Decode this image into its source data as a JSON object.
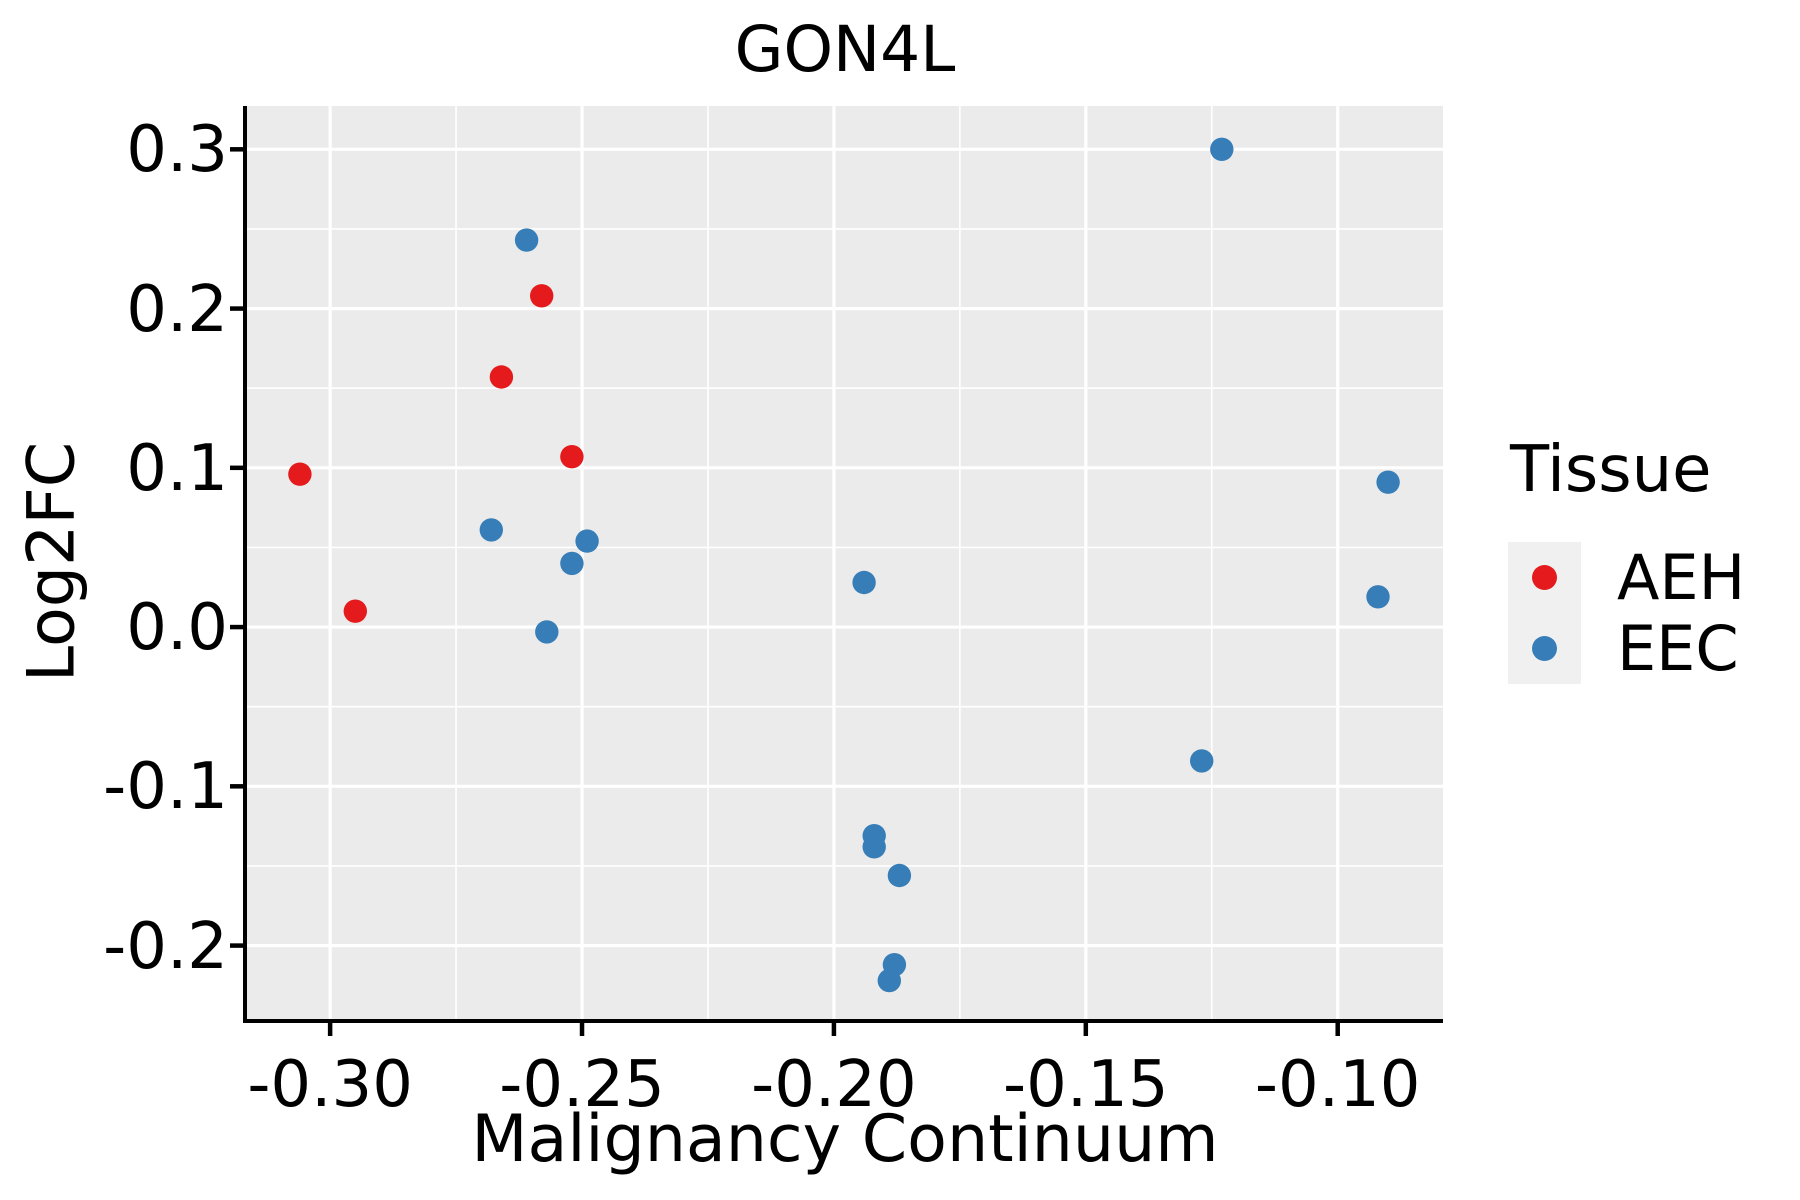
{
  "title": "GON4L",
  "chart_data": {
    "type": "scatter",
    "title": "GON4L",
    "xlabel": "Malignancy Continuum",
    "ylabel": "Log2FC",
    "xlim": [
      -0.3165,
      -0.0791
    ],
    "ylim": [
      -0.2461,
      0.3272
    ],
    "x_ticks": [
      -0.3,
      -0.25,
      -0.2,
      -0.15,
      -0.1
    ],
    "x_tick_labels": [
      "-0.30",
      "-0.25",
      "-0.20",
      "-0.15",
      "-0.10"
    ],
    "x_minor_ticks": [
      -0.275,
      -0.225,
      -0.175,
      -0.125
    ],
    "y_ticks": [
      0.3,
      0.2,
      0.1,
      0.0,
      -0.1,
      -0.2
    ],
    "y_tick_labels": [
      "0.3",
      "0.2",
      "0.1",
      "0.0",
      "-0.1",
      "-0.2"
    ],
    "y_minor_ticks": [
      0.25,
      0.15,
      0.05,
      -0.05,
      -0.15
    ],
    "grid": true,
    "legend_position": "right",
    "panel_bg": "#EBEBEB",
    "grid_color": "#FFFFFF",
    "axis_color": "#000000",
    "marker_radius": 11.7,
    "series": [
      {
        "name": "AEH",
        "color": "#E41A1C",
        "points": [
          [
            -0.306,
            0.096
          ],
          [
            -0.295,
            0.01
          ],
          [
            -0.266,
            0.157
          ],
          [
            -0.258,
            0.208
          ],
          [
            -0.252,
            0.107
          ]
        ]
      },
      {
        "name": "EEC",
        "color": "#377EB8",
        "points": [
          [
            -0.268,
            0.061
          ],
          [
            -0.261,
            0.243
          ],
          [
            -0.257,
            -0.003
          ],
          [
            -0.252,
            0.04
          ],
          [
            -0.249,
            0.054
          ],
          [
            -0.194,
            0.028
          ],
          [
            -0.192,
            -0.131
          ],
          [
            -0.192,
            -0.138
          ],
          [
            -0.187,
            -0.156
          ],
          [
            -0.188,
            -0.212
          ],
          [
            -0.189,
            -0.222
          ],
          [
            -0.127,
            -0.084
          ],
          [
            -0.123,
            0.3
          ],
          [
            -0.09,
            0.091
          ],
          [
            -0.092,
            0.019
          ]
        ]
      }
    ]
  },
  "legend": {
    "title": "Tissue",
    "items": [
      {
        "label": "AEH",
        "color": "#E41A1C"
      },
      {
        "label": "EEC",
        "color": "#377EB8"
      }
    ]
  }
}
